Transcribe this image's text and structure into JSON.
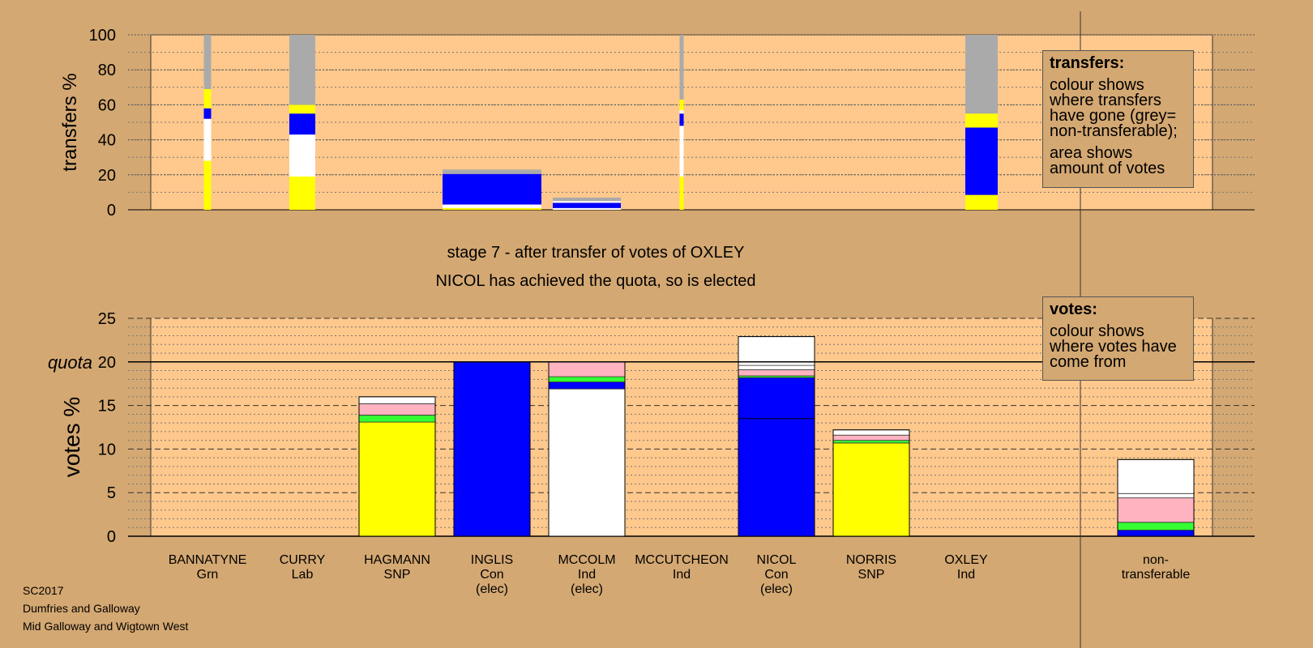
{
  "chart_data": [
    {
      "type": "bar",
      "ylabel": "transfers %",
      "ylim": [
        0,
        100
      ],
      "yticks": [
        0,
        20,
        40,
        60,
        80,
        100
      ],
      "categories": [
        "BANNATYNE",
        "CURRY",
        "HAGMANN",
        "INGLIS",
        "MCCOLM",
        "MCCUTCHEON",
        "NICOL",
        "NORRIS",
        "OXLEY"
      ],
      "transfers": [
        {
          "candidate": "BANNATYNE",
          "segments": [
            [
              "yellow",
              0,
              28
            ],
            [
              "white",
              28,
              52
            ],
            [
              "blue",
              52,
              58
            ],
            [
              "yellow",
              58,
              69
            ],
            [
              "grey",
              69,
              100
            ]
          ]
        },
        {
          "candidate": "CURRY",
          "segments": [
            [
              "yellow",
              0,
              19
            ],
            [
              "white",
              19,
              43
            ],
            [
              "blue",
              43,
              55
            ],
            [
              "yellow",
              55,
              60
            ],
            [
              "grey",
              60,
              100
            ]
          ]
        },
        {
          "candidate": "HAGMANN",
          "segments": [
            [
              "yellow",
              0,
              1
            ],
            [
              "white",
              1,
              3
            ],
            [
              "blue",
              3,
              20.5
            ],
            [
              "grey",
              20.5,
              23
            ]
          ]
        },
        {
          "candidate": "INGLIS",
          "segments": [
            [
              "white",
              0,
              1
            ],
            [
              "blue",
              1,
              4
            ],
            [
              "white",
              4,
              5
            ],
            [
              "grey",
              5,
              7
            ]
          ]
        },
        {
          "candidate": "MCCUTCHEON",
          "segments": [
            [
              "yellow",
              0,
              19
            ],
            [
              "white",
              19,
              48
            ],
            [
              "blue",
              48,
              55
            ],
            [
              "white",
              55,
              57
            ],
            [
              "yellow",
              57,
              63
            ],
            [
              "grey",
              63,
              100
            ]
          ]
        },
        {
          "candidate": "NORRIS",
          "segments": [
            [
              "yellow",
              0,
              8.5
            ],
            [
              "blue",
              8.5,
              47
            ],
            [
              "yellow",
              47,
              55
            ],
            [
              "grey",
              55,
              100
            ]
          ]
        }
      ]
    },
    {
      "type": "bar",
      "ylabel": "votes %",
      "ylim": [
        0,
        25
      ],
      "yticks": [
        0,
        5,
        10,
        15,
        20,
        25
      ],
      "quota": 20,
      "quota_label": "quota",
      "categories": [
        "BANNATYNE",
        "CURRY",
        "HAGMANN",
        "INGLIS",
        "MCCOLM",
        "MCCUTCHEON",
        "NICOL",
        "NORRIS",
        "OXLEY",
        "non-transferable"
      ],
      "candidates": [
        {
          "name": "BANNATYNE",
          "party": "Grn",
          "elec": "",
          "segments": []
        },
        {
          "name": "CURRY",
          "party": "Lab",
          "elec": "",
          "segments": []
        },
        {
          "name": "HAGMANN",
          "party": "SNP",
          "elec": "",
          "segments": [
            [
              "yellow",
              0,
              13.1
            ],
            [
              "green",
              13.1,
              13.9
            ],
            [
              "pink",
              13.9,
              15.2
            ],
            [
              "white",
              15.2,
              16.0
            ]
          ]
        },
        {
          "name": "INGLIS",
          "party": "Con",
          "elec": "(elec)",
          "segments": [
            [
              "blue",
              0,
              20
            ]
          ]
        },
        {
          "name": "MCCOLM",
          "party": "Ind",
          "elec": "(elec)",
          "segments": [
            [
              "white",
              0,
              16.9
            ],
            [
              "blue",
              16.9,
              17.7
            ],
            [
              "green",
              17.7,
              18.3
            ],
            [
              "pink",
              18.3,
              20
            ]
          ]
        },
        {
          "name": "MCCUTCHEON",
          "party": "Ind",
          "elec": "",
          "segments": []
        },
        {
          "name": "NICOL",
          "party": "Con",
          "elec": "(elec)",
          "segments": [
            [
              "blue",
              0,
              18.2
            ],
            [
              "green",
              18.2,
              18.4
            ],
            [
              "pink",
              18.4,
              19.1
            ],
            [
              "white",
              19.1,
              19.6
            ],
            [
              "white",
              19.6,
              22.9
            ]
          ]
        },
        {
          "name": "NORRIS",
          "party": "SNP",
          "elec": "",
          "segments": [
            [
              "yellow",
              0,
              10.7
            ],
            [
              "green",
              10.7,
              11.0
            ],
            [
              "pink",
              11.0,
              11.6
            ],
            [
              "white",
              11.6,
              12.2
            ]
          ]
        },
        {
          "name": "OXLEY",
          "party": "Ind",
          "elec": "",
          "segments": []
        },
        {
          "name": "non-transferable",
          "party": "transferable",
          "elec": "",
          "segments": [
            [
              "blue",
              0,
              0.7
            ],
            [
              "green",
              0.7,
              1.6
            ],
            [
              "pink",
              1.6,
              4.4
            ],
            [
              "white",
              4.4,
              4.9
            ],
            [
              "white",
              4.9,
              8.8
            ]
          ]
        }
      ],
      "name_lines": {
        "non-transferable": [
          "non-",
          "transferable"
        ]
      }
    }
  ],
  "colors": {
    "background": "#d4a872",
    "plot_area": "#ffc88c",
    "yellow": "#ffff00",
    "blue": "#0000ff",
    "white": "#ffffff",
    "grey": "#aaaaaa",
    "green": "#33ff33",
    "pink": "#ffb3c1"
  },
  "stage_title": "stage 7 - after transfer of votes of OXLEY",
  "stage_subtitle": "NICOL has achieved the quota, so is elected",
  "legend_transfers": {
    "title": "transfers:",
    "para1": "colour shows where transfers have gone (grey= non-transferable);",
    "para2": "area shows amount of votes"
  },
  "legend_votes": {
    "title": "votes:",
    "para1": "colour shows where votes have come from"
  },
  "footer": {
    "line1": "SC2017",
    "line2": "Dumfries and Galloway",
    "line3": "Mid Galloway and Wigtown West"
  }
}
